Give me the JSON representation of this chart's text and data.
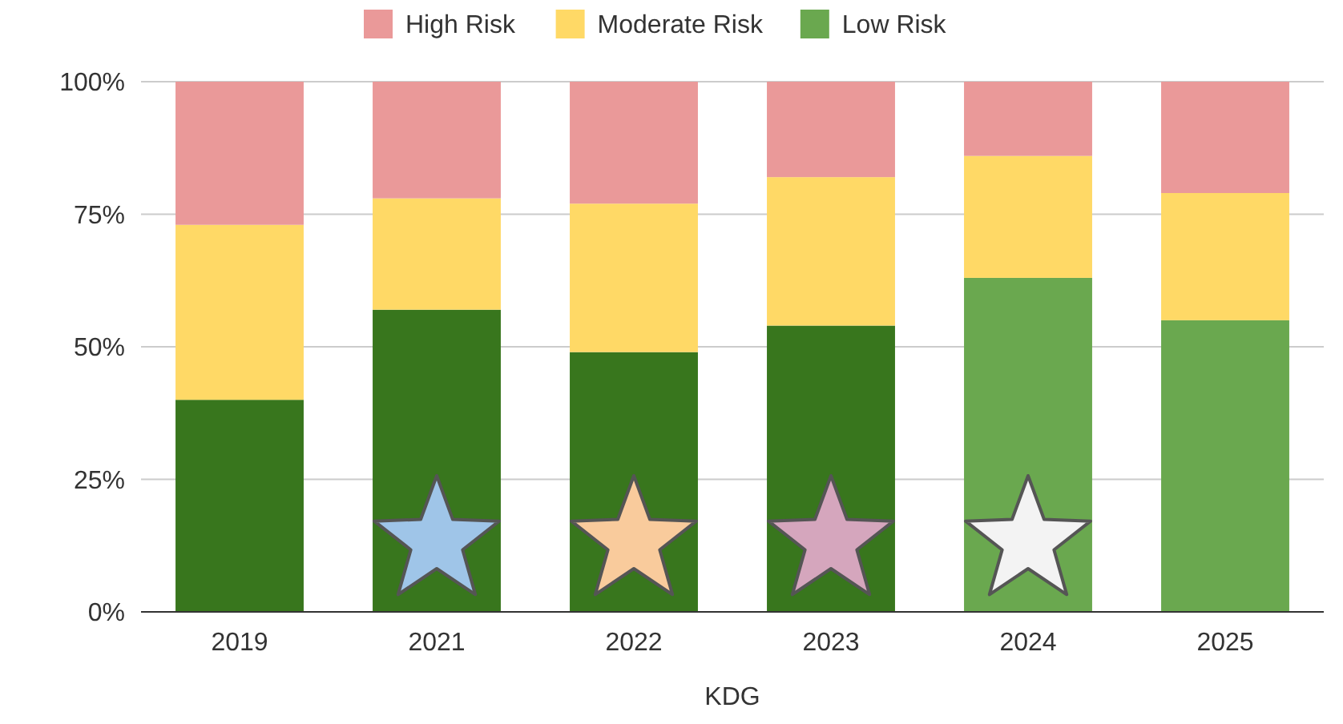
{
  "chart_data": {
    "type": "bar",
    "stacked": true,
    "xlabel": "KDG",
    "categories": [
      "2019",
      "2021",
      "2022",
      "2023",
      "2024",
      "2025"
    ],
    "series": [
      {
        "name": "Low Risk",
        "color": "#6aa84f",
        "colors": [
          "#38761d",
          "#38761d",
          "#38761d",
          "#38761d",
          "#6aa84f",
          "#6aa84f"
        ],
        "values": [
          40,
          57,
          49,
          54,
          63,
          55
        ]
      },
      {
        "name": "Moderate Risk",
        "color": "#ffd966",
        "values": [
          33,
          21,
          28,
          28,
          23,
          24
        ]
      },
      {
        "name": "High Risk",
        "color": "#ea9999",
        "values": [
          27,
          22,
          23,
          18,
          14,
          21
        ]
      }
    ],
    "ylim": [
      0,
      100
    ],
    "yticks": [
      {
        "value": 0,
        "label": "0%"
      },
      {
        "value": 25,
        "label": "25%"
      },
      {
        "value": 50,
        "label": "50%"
      },
      {
        "value": 75,
        "label": "75%"
      },
      {
        "value": 100,
        "label": "100%"
      }
    ],
    "grid": "y",
    "legend": "top"
  }
}
